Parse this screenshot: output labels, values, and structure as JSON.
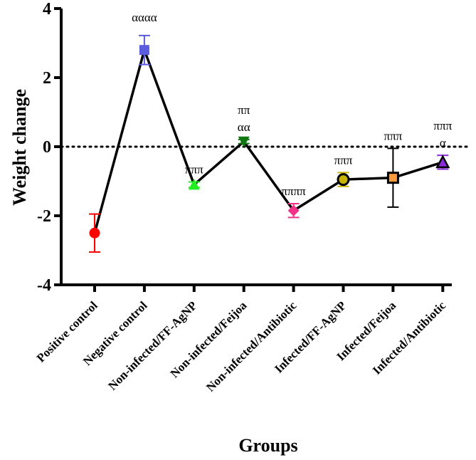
{
  "chart_data": {
    "type": "line",
    "title": "",
    "xlabel": "Groups",
    "ylabel": "Weight change",
    "ylim": [
      -4,
      4
    ],
    "yticks": [
      -4,
      -2,
      0,
      2,
      4
    ],
    "reference_line": {
      "y": 0,
      "style": "dotted"
    },
    "categories": [
      "Positive control",
      "Negative control",
      "Non-infected/FF-AgNP",
      "Non-infected/Feijoa",
      "Non-infected/Antibiotic",
      "Infected/FF-AgNP",
      "Infected/Feijoa",
      "Infected/Antibiotic"
    ],
    "series": [
      {
        "name": "Weight change",
        "values": [
          -2.5,
          2.8,
          -1.1,
          0.15,
          -1.85,
          -0.95,
          -0.9,
          -0.45
        ],
        "errors": [
          0.55,
          0.42,
          0.08,
          0.06,
          0.2,
          0.2,
          0.85,
          0.2
        ],
        "markers": [
          "circle",
          "square",
          "triangle-up",
          "triangle-down",
          "diamond",
          "circle",
          "square",
          "triangle-up"
        ],
        "colors": [
          "#ff0000",
          "#5b5bdd",
          "#22ee22",
          "#117711",
          "#ee3388",
          "#c8b400",
          "#ff9b3c",
          "#8b2bd9"
        ]
      }
    ],
    "annotations": [
      {
        "index": 1,
        "lines": [
          "αααα"
        ]
      },
      {
        "index": 2,
        "lines": [
          "πππ"
        ]
      },
      {
        "index": 3,
        "lines": [
          "ππ",
          "αα"
        ]
      },
      {
        "index": 4,
        "lines": [
          "ππππ"
        ]
      },
      {
        "index": 5,
        "lines": [
          "πππ"
        ]
      },
      {
        "index": 6,
        "lines": [
          "πππ"
        ]
      },
      {
        "index": 7,
        "lines": [
          "πππ",
          "α"
        ]
      }
    ]
  }
}
